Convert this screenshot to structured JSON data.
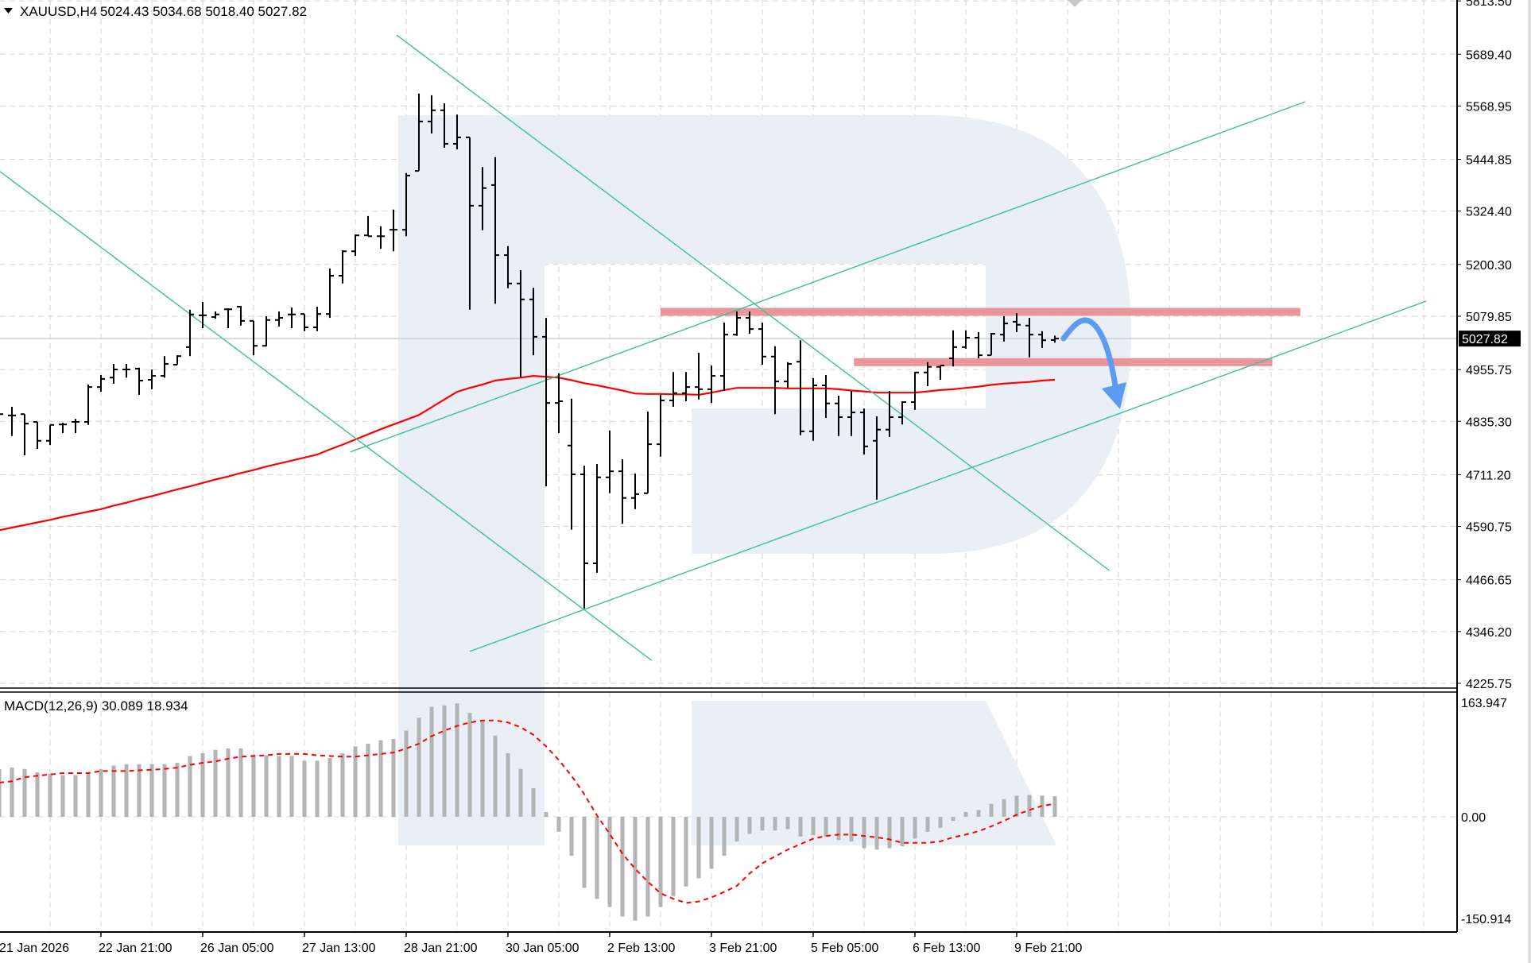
{
  "header": {
    "symbol": "XAUUSD,H4",
    "ohlc": "5024.43 5034.68 5018.40 5027.82",
    "dropdown_icon": "triangle-down-icon"
  },
  "macd_header": "MACD(12,26,9) 30.089 18.934",
  "price_axis": {
    "labels": [
      "5813.50",
      "5689.40",
      "5568.95",
      "5444.85",
      "5324.40",
      "5200.30",
      "5079.85",
      "4955.75",
      "4835.30",
      "4711.20",
      "4590.75",
      "4466.65",
      "4346.20",
      "4225.75"
    ],
    "current_price": "5027.82"
  },
  "macd_axis": {
    "labels": [
      "163.947",
      "0.00",
      "-150.914"
    ]
  },
  "time_axis": {
    "labels": [
      "21 Jan 2026",
      "22 Jan 21:00",
      "26 Jan 05:00",
      "27 Jan 13:00",
      "28 Jan 21:00",
      "30 Jan 05:00",
      "2 Feb 13:00",
      "3 Feb 21:00",
      "5 Feb 05:00",
      "6 Feb 13:00",
      "9 Feb 21:00"
    ]
  },
  "colors": {
    "bars": "#000000",
    "moving_average": "#ff0000",
    "trendline": "#3cbf9c",
    "zone": "#e8898f",
    "arrow": "#5b9bf0",
    "macd_histogram": "#b3b3b3",
    "macd_signal": "#ff0000",
    "watermark": "#e9eef5",
    "grid": "#d6d6d6"
  },
  "chart_data": {
    "type": "ohlc",
    "symbol": "XAUUSD",
    "timeframe": "H4",
    "ylim": [
      4225.75,
      5813.5
    ],
    "grid": true,
    "bars_ohlc": [
      [
        4845,
        4864,
        4836,
        4852
      ],
      [
        4849,
        4869,
        4801,
        4849
      ],
      [
        4852,
        4852,
        4756,
        4830
      ],
      [
        4834,
        4834,
        4771,
        4790
      ],
      [
        4790,
        4827,
        4780,
        4827
      ],
      [
        4828,
        4832,
        4808,
        4828
      ],
      [
        4834,
        4841,
        4808,
        4834
      ],
      [
        4834,
        4921,
        4827,
        4915
      ],
      [
        4915,
        4943,
        4904,
        4934
      ],
      [
        4937,
        4969,
        4923,
        4956
      ],
      [
        4956,
        4969,
        4937,
        4956
      ],
      [
        4958,
        4960,
        4897,
        4930
      ],
      [
        4932,
        4956,
        4910,
        4941
      ],
      [
        4941,
        4987,
        4937,
        4969
      ],
      [
        4967,
        4989,
        4967,
        4987
      ],
      [
        5008,
        5095,
        4987,
        5084
      ],
      [
        5082,
        5113,
        5052,
        5082
      ],
      [
        5078,
        5091,
        5074,
        5084
      ],
      [
        5096,
        5098,
        5052,
        5096
      ],
      [
        5102,
        5104,
        5058,
        5069
      ],
      [
        5069,
        5069,
        4989,
        5011
      ],
      [
        5011,
        5080,
        5010,
        5071
      ],
      [
        5071,
        5091,
        5056,
        5076
      ],
      [
        5084,
        5100,
        5052,
        5084
      ],
      [
        5085,
        5085,
        5045,
        5054
      ],
      [
        5054,
        5102,
        5045,
        5085
      ],
      [
        5085,
        5191,
        5076,
        5174
      ],
      [
        5174,
        5233,
        5156,
        5231
      ],
      [
        5231,
        5270,
        5220,
        5268
      ],
      [
        5268,
        5313,
        5266,
        5266
      ],
      [
        5266,
        5289,
        5237,
        5266
      ],
      [
        5281,
        5328,
        5231,
        5281
      ],
      [
        5281,
        5413,
        5266,
        5407
      ],
      [
        5418,
        5598,
        5418,
        5533
      ],
      [
        5533,
        5594,
        5505,
        5559
      ],
      [
        5559,
        5575,
        5472,
        5481
      ],
      [
        5481,
        5549,
        5468,
        5496
      ],
      [
        5496,
        5496,
        5095,
        5337
      ],
      [
        5337,
        5427,
        5280,
        5378
      ],
      [
        5385,
        5450,
        5109,
        5222
      ],
      [
        5222,
        5243,
        5145,
        5156
      ],
      [
        5156,
        5187,
        4938,
        5119
      ],
      [
        5119,
        5146,
        4989,
        5032
      ],
      [
        5032,
        5076,
        4684,
        4878
      ],
      [
        4878,
        4947,
        4808,
        4882
      ],
      [
        4779,
        4888,
        4583,
        4712
      ],
      [
        4712,
        4732,
        4400,
        4505
      ],
      [
        4505,
        4736,
        4483,
        4705
      ],
      [
        4705,
        4814,
        4668,
        4719
      ],
      [
        4719,
        4747,
        4597,
        4657
      ],
      [
        4657,
        4714,
        4631,
        4666
      ],
      [
        4668,
        4858,
        4668,
        4782
      ],
      [
        4782,
        4897,
        4753,
        4884
      ],
      [
        4884,
        4950,
        4869,
        4901
      ],
      [
        4901,
        4950,
        4882,
        4915
      ],
      [
        4915,
        4995,
        4886,
        4910
      ],
      [
        4910,
        4965,
        4878,
        4941
      ],
      [
        4941,
        5065,
        4906,
        5037
      ],
      [
        5037,
        5091,
        5034,
        5076
      ],
      [
        5076,
        5091,
        5039,
        5050
      ],
      [
        5050,
        5065,
        4967,
        4986
      ],
      [
        4986,
        5010,
        4852,
        4928
      ],
      [
        4928,
        4973,
        4913,
        4969
      ],
      [
        4974,
        5024,
        4803,
        4812
      ],
      [
        4812,
        4936,
        4790,
        4919
      ],
      [
        4919,
        4943,
        4843,
        4877
      ],
      [
        4877,
        4895,
        4801,
        4845
      ],
      [
        4845,
        4906,
        4801,
        4856
      ],
      [
        4856,
        4865,
        4758,
        4777
      ],
      [
        4790,
        4847,
        4653,
        4816
      ],
      [
        4816,
        4906,
        4799,
        4845
      ],
      [
        4845,
        4882,
        4828,
        4880
      ],
      [
        4880,
        4950,
        4862,
        4949
      ],
      [
        4949,
        4973,
        4917,
        4962
      ],
      [
        4962,
        4965,
        4932,
        4965
      ],
      [
        4982,
        5047,
        4963,
        5008
      ],
      [
        5008,
        5047,
        5004,
        5030
      ],
      [
        5030,
        5043,
        4982,
        4989
      ],
      [
        4989,
        5041,
        4989,
        5039
      ],
      [
        5037,
        5080,
        5021,
        5063
      ],
      [
        5067,
        5087,
        5043,
        5060
      ],
      [
        5058,
        5076,
        4984,
        5037
      ],
      [
        5037,
        5045,
        5006,
        5024
      ],
      [
        5024.43,
        5034.68,
        5018.4,
        5027.82
      ]
    ],
    "moving_average": [
      4582,
      4588,
      4594,
      4600,
      4606,
      4613,
      4619,
      4625,
      4631,
      4639,
      4646,
      4654,
      4661,
      4669,
      4677,
      4684,
      4692,
      4700,
      4707,
      4715,
      4722,
      4730,
      4737,
      4744,
      4751,
      4758,
      4770,
      4781,
      4793,
      4805,
      4817,
      4828,
      4839,
      4850,
      4868,
      4886,
      4904,
      4913,
      4921,
      4930,
      4934,
      4937,
      4941,
      4939,
      4937,
      4931,
      4924,
      4919,
      4913,
      4907,
      4900,
      4899,
      4899,
      4898,
      4898,
      4897,
      4902,
      4908,
      4913,
      4913,
      4913,
      4913,
      4912,
      4912,
      4912,
      4912,
      4910,
      4907,
      4905,
      4902,
      4902,
      4902,
      4902,
      4905,
      4908,
      4910,
      4913,
      4916,
      4920,
      4923,
      4925,
      4927,
      4930,
      4932
    ],
    "macd": {
      "ylim": [
        -150.914,
        163.947
      ],
      "main_histogram": [
        70,
        72,
        70,
        65,
        63,
        61,
        61,
        64,
        70,
        75,
        77,
        77,
        77,
        77,
        79,
        89,
        93,
        98,
        100,
        100,
        91,
        90,
        89,
        89,
        82,
        82,
        86,
        93,
        103,
        107,
        112,
        114,
        126,
        145,
        161,
        163,
        166,
        152,
        140,
        119,
        93,
        70,
        42,
        7,
        -22,
        -57,
        -104,
        -120,
        -132,
        -146,
        -152,
        -146,
        -132,
        -116,
        -102,
        -90,
        -76,
        -57,
        -36,
        -25,
        -20,
        -20,
        -18,
        -29,
        -27,
        -29,
        -34,
        -36,
        -46,
        -48,
        -46,
        -43,
        -32,
        -22,
        -16,
        -6,
        7,
        10,
        19,
        26,
        31,
        32,
        31,
        30.089
      ],
      "signal": [
        50,
        52,
        58,
        60,
        62,
        64,
        64,
        64,
        67,
        67,
        67,
        68,
        69,
        70,
        72,
        76,
        79,
        81,
        85,
        88,
        89,
        90,
        92,
        92,
        92,
        90,
        89,
        88,
        88,
        90,
        92,
        94,
        100,
        107,
        118,
        126,
        133,
        138,
        141,
        141,
        138,
        131,
        120,
        103,
        83,
        60,
        33,
        2,
        -25,
        -54,
        -76,
        -95,
        -112,
        -120,
        -126,
        -124,
        -118,
        -110,
        -101,
        -83,
        -68,
        -58,
        -48,
        -40,
        -32,
        -28,
        -26,
        -26,
        -28,
        -30,
        -33,
        -38,
        -38,
        -38,
        -36,
        -30,
        -26,
        -21,
        -14,
        -6,
        3,
        10,
        16,
        18.934
      ]
    },
    "trendlines": [
      {
        "from": [
          0,
          5418
        ],
        "to": [
          51.3,
          4279
        ]
      },
      {
        "from": [
          31.25,
          5734
        ],
        "to": [
          87.3,
          4488
        ]
      },
      {
        "from": [
          27.6,
          4764
        ],
        "to": [
          102.7,
          5579
        ]
      },
      {
        "from": [
          37,
          4300
        ],
        "to": [
          112.2,
          5115
        ]
      }
    ],
    "zones": [
      {
        "from_bar": 52,
        "to_bar": 102.3,
        "price": 5090
      },
      {
        "from_bar": 67.2,
        "to_bar": 100.1,
        "price": 4973
      }
    ],
    "forecast_arrow": {
      "direction": "down"
    }
  }
}
